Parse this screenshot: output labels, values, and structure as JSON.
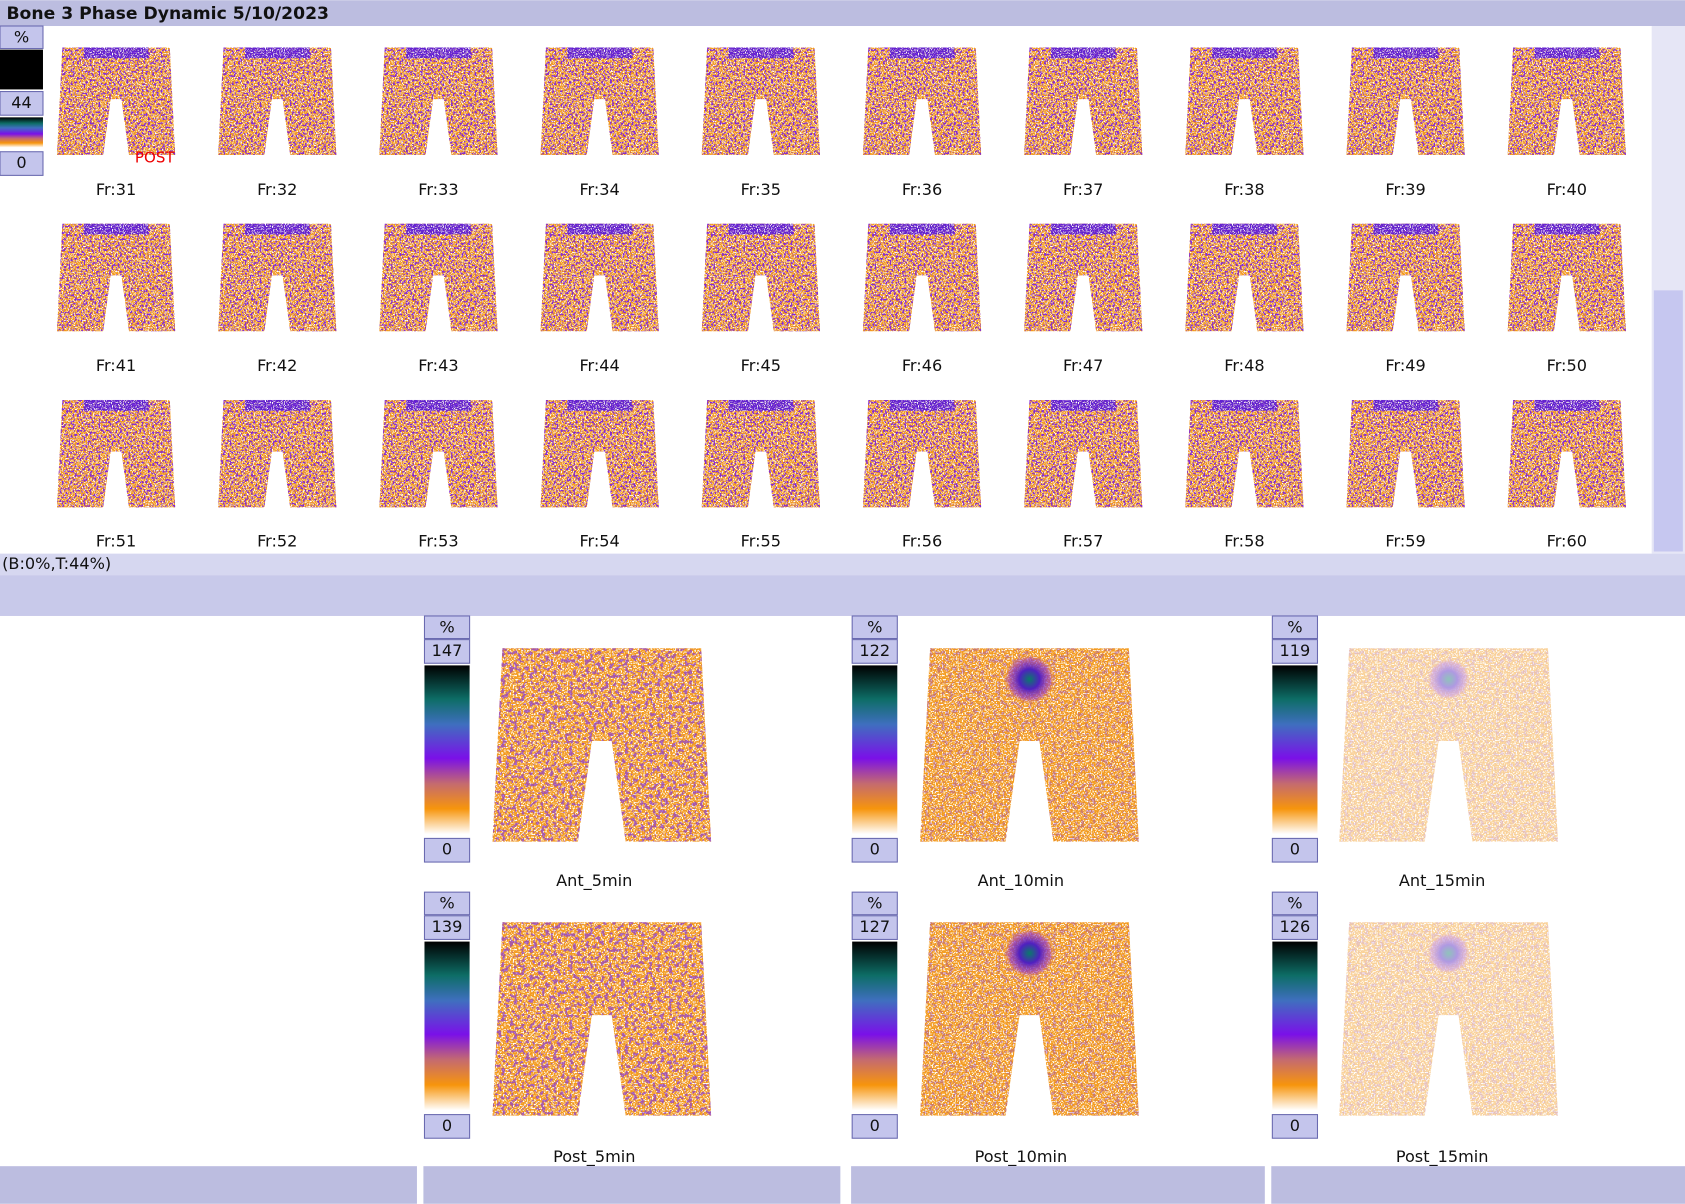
{
  "header": {
    "title": "Bone 3 Phase Dynamic 5/10/2023"
  },
  "dynamic": {
    "scale": {
      "unit": "%",
      "max": "44",
      "min": "0"
    },
    "view_label": "POST",
    "frames": [
      "Fr:31",
      "Fr:32",
      "Fr:33",
      "Fr:34",
      "Fr:35",
      "Fr:36",
      "Fr:37",
      "Fr:38",
      "Fr:39",
      "Fr:40",
      "Fr:41",
      "Fr:42",
      "Fr:43",
      "Fr:44",
      "Fr:45",
      "Fr:46",
      "Fr:47",
      "Fr:48",
      "Fr:49",
      "Fr:50",
      "Fr:51",
      "Fr:52",
      "Fr:53",
      "Fr:54",
      "Fr:55",
      "Fr:56",
      "Fr:57",
      "Fr:58",
      "Fr:59",
      "Fr:60"
    ]
  },
  "status": "(B:0%,T:44%)",
  "static_images": [
    {
      "label": "Ant_5min",
      "scale": {
        "unit": "%",
        "max": "147",
        "min": "0"
      }
    },
    {
      "label": "Ant_10min",
      "scale": {
        "unit": "%",
        "max": "122",
        "min": "0"
      }
    },
    {
      "label": "Ant_15min",
      "scale": {
        "unit": "%",
        "max": "119",
        "min": "0"
      }
    },
    {
      "label": "Post_5min",
      "scale": {
        "unit": "%",
        "max": "139",
        "min": "0"
      }
    },
    {
      "label": "Post_10min",
      "scale": {
        "unit": "%",
        "max": "127",
        "min": "0"
      }
    },
    {
      "label": "Post_15min",
      "scale": {
        "unit": "%",
        "max": "126",
        "min": "0"
      }
    }
  ]
}
